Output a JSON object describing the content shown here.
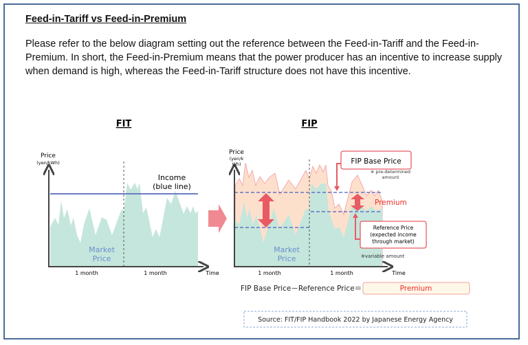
{
  "heading": "Feed-in-Tariff vs Feed-in-Premium",
  "paragraph": "Please refer to the below diagram setting out the reference between the Feed-in-Tariff and the Feed-in-Premium. In short, the Feed-in-Premium means that the power producer has an incentive to increase supply when demand is high, whereas the Feed-in-Tariff structure does not have this incentive.",
  "fit": {
    "title": "FIT",
    "y_label": "Price",
    "y_unit": "(yen/kWh)",
    "income_label_1": "Income",
    "income_label_2": "(blue line)",
    "market_label_1": "Market",
    "market_label_2": "Price",
    "period_1": "1 month",
    "period_2": "1 month",
    "x_label": "Time"
  },
  "fip": {
    "title": "FIP",
    "y_label": "Price",
    "y_unit_1": "(yen/k",
    "y_unit_2": "Wh)",
    "base_price_box": "FIP Base Price",
    "base_note_1": "※ pre-determined",
    "base_note_2": "amount",
    "premium_label": "Premium",
    "reference_box_1": "Reference Price",
    "reference_box_2": "(expected income",
    "reference_box_3": "through market)",
    "variable_note": "※variable amount",
    "market_label_1": "Market",
    "market_label_2": "Price",
    "period_1": "1 month",
    "period_2": "1 month",
    "x_label": "Time"
  },
  "formula": {
    "text": "FIP Base Price－Reference Price＝",
    "result": "Premium"
  },
  "source": "Source: FIT/FIP Handbook 2022 by Japanese Energy Agency",
  "colors": {
    "border": "#4a6c9c",
    "market_area": "#c5e6dc",
    "premium_area": "#fde0cc",
    "income_line": "#6a7bc4",
    "accent_red": "#e85a64",
    "market_text": "#6a8fd0"
  }
}
